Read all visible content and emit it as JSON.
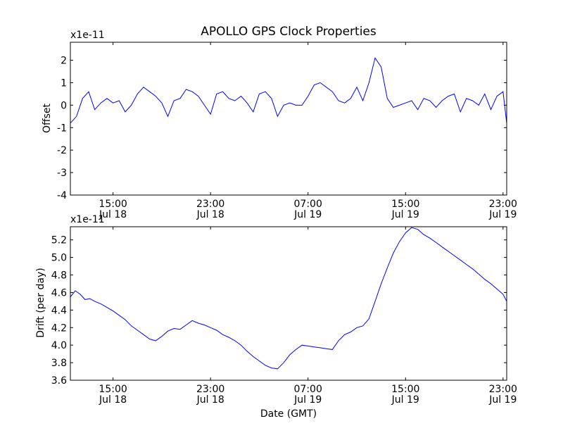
{
  "chart_data": [
    {
      "type": "line",
      "title": "APOLLO GPS Clock Properties",
      "xlabel": "",
      "ylabel": "Offset",
      "offset_text": "x1e-11",
      "ylim": [
        -4,
        2.8
      ],
      "yticks": [
        -4,
        -3,
        -2,
        -1,
        0,
        1,
        2
      ],
      "xlim_hours": [
        11.5,
        47.3
      ],
      "xticks": [
        {
          "h": 15,
          "time": "15:00",
          "date": "Jul 18"
        },
        {
          "h": 23,
          "time": "23:00",
          "date": "Jul 18"
        },
        {
          "h": 31,
          "time": "07:00",
          "date": "Jul 19"
        },
        {
          "h": 39,
          "time": "15:00",
          "date": "Jul 19"
        },
        {
          "h": 47,
          "time": "23:00",
          "date": "Jul 19"
        }
      ],
      "color": "#0000ff",
      "series": [
        {
          "name": "offset",
          "x_hours": [
            11.5,
            12.0,
            12.5,
            13.0,
            13.5,
            14.0,
            14.5,
            15.0,
            15.5,
            16.0,
            16.5,
            17.0,
            17.5,
            18.0,
            18.5,
            19.0,
            19.5,
            20.0,
            20.5,
            21.0,
            21.5,
            22.0,
            22.5,
            23.0,
            23.5,
            24.0,
            24.5,
            25.0,
            25.5,
            26.0,
            26.5,
            27.0,
            27.5,
            28.0,
            28.5,
            29.0,
            29.5,
            30.0,
            30.5,
            31.0,
            31.5,
            32.0,
            32.5,
            33.0,
            33.5,
            34.0,
            34.5,
            35.0,
            35.5,
            36.0,
            36.5,
            37.0,
            37.5,
            38.0,
            38.5,
            39.0,
            39.5,
            40.0,
            40.5,
            41.0,
            41.5,
            42.0,
            42.5,
            43.0,
            43.5,
            44.0,
            44.5,
            45.0,
            45.5,
            46.0,
            46.5,
            47.0,
            47.3
          ],
          "values": [
            -0.8,
            -0.5,
            0.3,
            0.6,
            -0.2,
            0.1,
            0.3,
            0.1,
            0.2,
            -0.3,
            0.0,
            0.5,
            0.8,
            0.6,
            0.4,
            0.1,
            -0.5,
            0.2,
            0.3,
            0.7,
            0.6,
            0.4,
            0.0,
            -0.4,
            0.5,
            0.6,
            0.3,
            0.2,
            0.4,
            0.1,
            -0.3,
            0.5,
            0.6,
            0.3,
            -0.5,
            0.0,
            0.1,
            0.0,
            0.0,
            0.4,
            0.9,
            1.0,
            0.8,
            0.6,
            0.2,
            0.1,
            0.3,
            0.8,
            0.2,
            1.0,
            2.1,
            1.7,
            0.3,
            -0.1,
            0.0,
            0.1,
            0.2,
            -0.2,
            0.3,
            0.2,
            -0.1,
            0.2,
            0.4,
            0.5,
            -0.3,
            0.3,
            0.2,
            0.0,
            0.5,
            -0.2,
            0.4,
            0.6,
            -0.8
          ]
        }
      ]
    },
    {
      "type": "line",
      "title": "",
      "xlabel": "Date (GMT)",
      "ylabel": "Drift (per day)",
      "offset_text": "x1e-11",
      "ylim": [
        3.6,
        5.35
      ],
      "yticks": [
        3.6,
        3.8,
        4.0,
        4.2,
        4.4,
        4.6,
        4.8,
        5.0,
        5.2
      ],
      "ytick_labels": [
        "3.6",
        "3.8",
        "4.0",
        "4.2",
        "4.4",
        "4.6",
        "4.8",
        "5.0",
        "5.2"
      ],
      "xlim_hours": [
        11.5,
        47.3
      ],
      "xticks": [
        {
          "h": 15,
          "time": "15:00",
          "date": "Jul 18"
        },
        {
          "h": 23,
          "time": "23:00",
          "date": "Jul 18"
        },
        {
          "h": 31,
          "time": "07:00",
          "date": "Jul 19"
        },
        {
          "h": 39,
          "time": "15:00",
          "date": "Jul 19"
        },
        {
          "h": 47,
          "time": "23:00",
          "date": "Jul 19"
        }
      ],
      "color": "#0000ff",
      "series": [
        {
          "name": "drift",
          "x_hours": [
            11.5,
            11.9,
            12.3,
            12.7,
            13.1,
            13.5,
            14.0,
            14.5,
            15.0,
            15.5,
            16.0,
            16.5,
            17.0,
            17.5,
            18.0,
            18.5,
            19.0,
            19.5,
            20.0,
            20.5,
            21.0,
            21.5,
            22.0,
            22.5,
            23.0,
            23.5,
            24.0,
            24.5,
            25.0,
            25.5,
            26.0,
            26.5,
            27.0,
            27.5,
            28.0,
            28.5,
            29.0,
            29.5,
            30.0,
            30.5,
            31.0,
            31.5,
            32.0,
            32.5,
            33.0,
            33.5,
            34.0,
            34.5,
            35.0,
            35.5,
            36.0,
            36.5,
            37.0,
            37.5,
            38.0,
            38.5,
            39.0,
            39.5,
            40.0,
            40.5,
            41.0,
            41.5,
            42.0,
            42.5,
            43.0,
            43.5,
            44.0,
            44.5,
            45.0,
            45.5,
            46.0,
            46.5,
            47.0,
            47.3
          ],
          "values": [
            4.55,
            4.62,
            4.58,
            4.52,
            4.53,
            4.5,
            4.47,
            4.43,
            4.39,
            4.34,
            4.29,
            4.22,
            4.17,
            4.12,
            4.07,
            4.05,
            4.1,
            4.16,
            4.19,
            4.18,
            4.23,
            4.28,
            4.25,
            4.23,
            4.2,
            4.17,
            4.12,
            4.09,
            4.05,
            4.0,
            3.93,
            3.87,
            3.82,
            3.77,
            3.74,
            3.73,
            3.8,
            3.89,
            3.95,
            4.0,
            3.99,
            3.98,
            3.97,
            3.96,
            3.95,
            4.05,
            4.12,
            4.15,
            4.2,
            4.22,
            4.3,
            4.5,
            4.7,
            4.88,
            5.05,
            5.18,
            5.28,
            5.34,
            5.32,
            5.26,
            5.22,
            5.17,
            5.12,
            5.07,
            5.02,
            4.97,
            4.92,
            4.87,
            4.81,
            4.75,
            4.7,
            4.64,
            4.58,
            4.5
          ]
        }
      ]
    }
  ]
}
